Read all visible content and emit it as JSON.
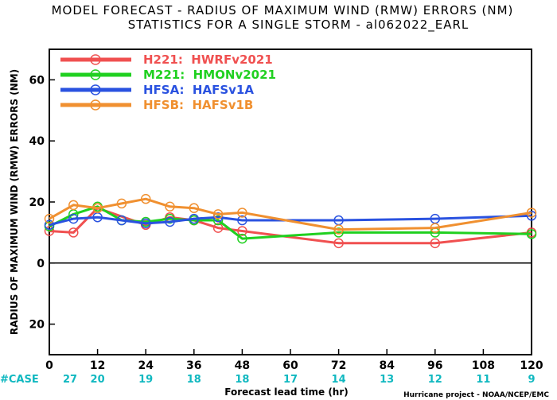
{
  "chart_data": {
    "type": "line",
    "title": "MODEL FORECAST - RADIUS OF MAXIMUM WIND (RMW) ERRORS (NM)",
    "subtitle": "STATISTICS FOR A SINGLE STORM - al062022_EARL",
    "xlabel": "Forecast lead time (hr)",
    "ylabel": "RADIUS OF MAXIMUM WIND (RMW) ERRORS (NM)",
    "xlim": [
      0,
      120
    ],
    "ylim": [
      -30,
      70
    ],
    "x_ticks": [
      0,
      12,
      24,
      36,
      48,
      60,
      72,
      84,
      96,
      108,
      120
    ],
    "x_tick_labels": [
      "0",
      "12",
      "24",
      "36",
      "48",
      "60",
      "72",
      "84",
      "96",
      "108",
      "120"
    ],
    "y_ticks": [
      -20,
      0,
      20,
      40,
      60
    ],
    "y_tick_labels": [
      "20",
      "0",
      "20",
      "40",
      "60"
    ],
    "grid": false,
    "legend_position": "top-left",
    "series": [
      {
        "name": "H221:  HWRFv2021",
        "color": "#f05050",
        "x": [
          0,
          6,
          12,
          24,
          30,
          36,
          42,
          48,
          72,
          96,
          120
        ],
        "y": [
          10.5,
          10,
          18,
          12.5,
          15,
          14,
          11.5,
          10.5,
          6.5,
          6.5,
          10
        ]
      },
      {
        "name": "M221:  HMONv2021",
        "color": "#20d020",
        "x": [
          0,
          6,
          12,
          18,
          24,
          30,
          36,
          42,
          48,
          72,
          96,
          120
        ],
        "y": [
          12,
          16,
          18.5,
          14,
          13.5,
          14.5,
          14,
          14,
          8,
          10,
          10,
          9.5
        ]
      },
      {
        "name": "HFSA:  HAFSv1A",
        "color": "#2a52e0",
        "x": [
          0,
          6,
          12,
          18,
          24,
          30,
          36,
          42,
          48,
          72,
          96,
          120
        ],
        "y": [
          12.5,
          14.5,
          15,
          14,
          13,
          13.5,
          14.5,
          15,
          14,
          14,
          14.5,
          15.5
        ]
      },
      {
        "name": "HFSB:  HAFSv1B",
        "color": "#f09030",
        "x": [
          0,
          6,
          12,
          18,
          24,
          30,
          36,
          42,
          48,
          72,
          96,
          120
        ],
        "y": [
          14.5,
          19,
          18,
          19.5,
          21,
          18.5,
          18,
          16,
          16.5,
          11,
          11.5,
          16.5
        ]
      }
    ],
    "case_label": "#CASE",
    "case_counts": [
      {
        "x": 0,
        "n": "27"
      },
      {
        "x": 12,
        "n": "20"
      },
      {
        "x": 24,
        "n": "19"
      },
      {
        "x": 36,
        "n": "18"
      },
      {
        "x": 48,
        "n": "18"
      },
      {
        "x": 60,
        "n": "17"
      },
      {
        "x": 72,
        "n": "14"
      },
      {
        "x": 84,
        "n": "13"
      },
      {
        "x": 96,
        "n": "12"
      },
      {
        "x": 108,
        "n": "11"
      },
      {
        "x": 120,
        "n": "9"
      }
    ],
    "credit": "Hurricane project - NOAA/NCEP/EMC"
  }
}
